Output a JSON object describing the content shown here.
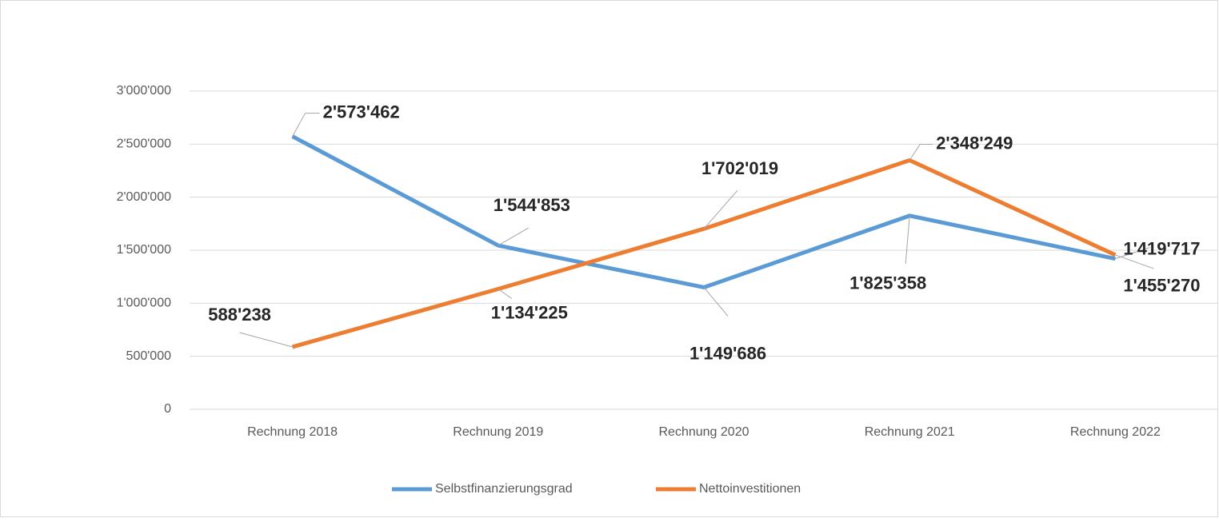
{
  "chart_data": {
    "type": "line",
    "categories": [
      "Rechnung 2018",
      "Rechnung 2019",
      "Rechnung 2020",
      "Rechnung 2021",
      "Rechnung 2022"
    ],
    "series": [
      {
        "name": "Selbstfinanzierungsgrad",
        "color": "#5b9bd5",
        "values": [
          2573462,
          1544853,
          1149686,
          1825358,
          1419717
        ],
        "value_labels": [
          "2'573'462",
          "1'544'853",
          "1'149'686",
          "1'825'358",
          "1'419'717"
        ]
      },
      {
        "name": "Nettoinvestitionen",
        "color": "#ed7d31",
        "values": [
          588238,
          1134225,
          1702019,
          2348249,
          1455270
        ],
        "value_labels": [
          "588'238",
          "1'134'225",
          "1'702'019",
          "2'348'249",
          "1'455'270"
        ]
      }
    ],
    "ylim": [
      0,
      3000000
    ],
    "yticks": [
      0,
      {
        "value": 500000,
        "label": "500'000"
      },
      {
        "value": 1000000,
        "label": "1'000'000"
      },
      {
        "value": 1500000,
        "label": "1'500'000"
      },
      {
        "value": 2000000,
        "label": "2'000'000"
      },
      {
        "value": 2500000,
        "label": "2'500'000"
      },
      {
        "value": 3000000,
        "label": "3'000'000"
      }
    ],
    "grid": true,
    "legend": "bottom"
  }
}
